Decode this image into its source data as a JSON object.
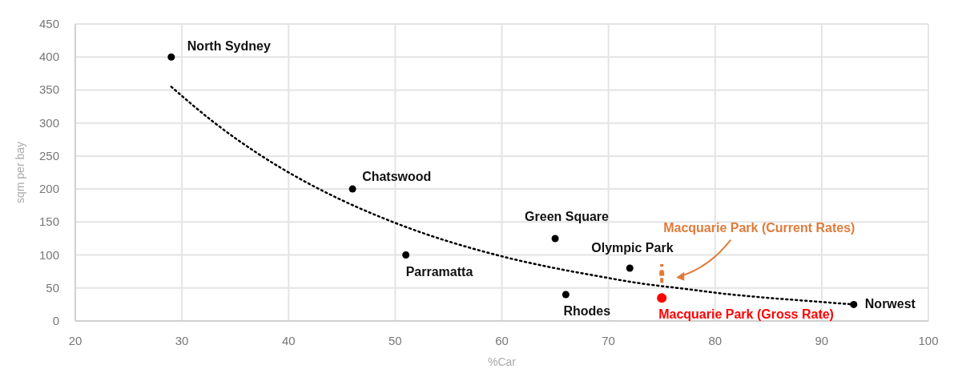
{
  "chart_data": {
    "type": "scatter",
    "xlabel": "%Car",
    "ylabel": "sqm per bay",
    "xlim": [
      20,
      100
    ],
    "xticks": [
      20,
      30,
      40,
      50,
      60,
      70,
      80,
      90,
      100
    ],
    "ylim": [
      0,
      450
    ],
    "yticks": [
      0,
      50,
      100,
      150,
      200,
      250,
      300,
      350,
      400,
      450
    ],
    "grid": true,
    "marker": "circle",
    "series": [
      {
        "color": "#000000",
        "x": [
          29,
          46,
          51,
          65,
          72,
          66,
          93
        ],
        "values": [
          400,
          200,
          100,
          125,
          80,
          40,
          25
        ]
      },
      {
        "name": "Macquarie Park (Gross Rate)",
        "color": "#ff0000",
        "x": [
          75
        ],
        "values": [
          35
        ]
      },
      {
        "name": "Macquarie Park (Current Rates)",
        "color": "#e07b39",
        "x": [
          75
        ],
        "values": [
          72
        ],
        "errors": [
          [
            58,
            86
          ]
        ],
        "marker": "square",
        "line_style": "dashed"
      },
      {
        "type": "line",
        "color": "#000000",
        "line_style": "dotted",
        "marker": "none",
        "x": [
          29,
          33,
          37,
          41,
          45,
          49,
          53,
          57,
          61,
          65,
          69,
          73,
          77,
          81,
          85,
          89,
          93
        ],
        "values": [
          355,
          301,
          255,
          216,
          183,
          155,
          131,
          111,
          94,
          80,
          68,
          57,
          49,
          41,
          35,
          30,
          25
        ]
      }
    ],
    "annotations": [
      {
        "text": "North Sydney",
        "x": 29,
        "y": 400
      },
      {
        "text": "Chatswood",
        "x": 46,
        "y": 200
      },
      {
        "text": "Parramatta",
        "x": 51,
        "y": 100
      },
      {
        "text": "Green Square",
        "x": 65,
        "y": 125
      },
      {
        "text": "Olympic Park",
        "x": 72,
        "y": 80
      },
      {
        "text": "Rhodes",
        "x": 66,
        "y": 40
      },
      {
        "text": "Norwest",
        "x": 93,
        "y": 25
      }
    ]
  }
}
